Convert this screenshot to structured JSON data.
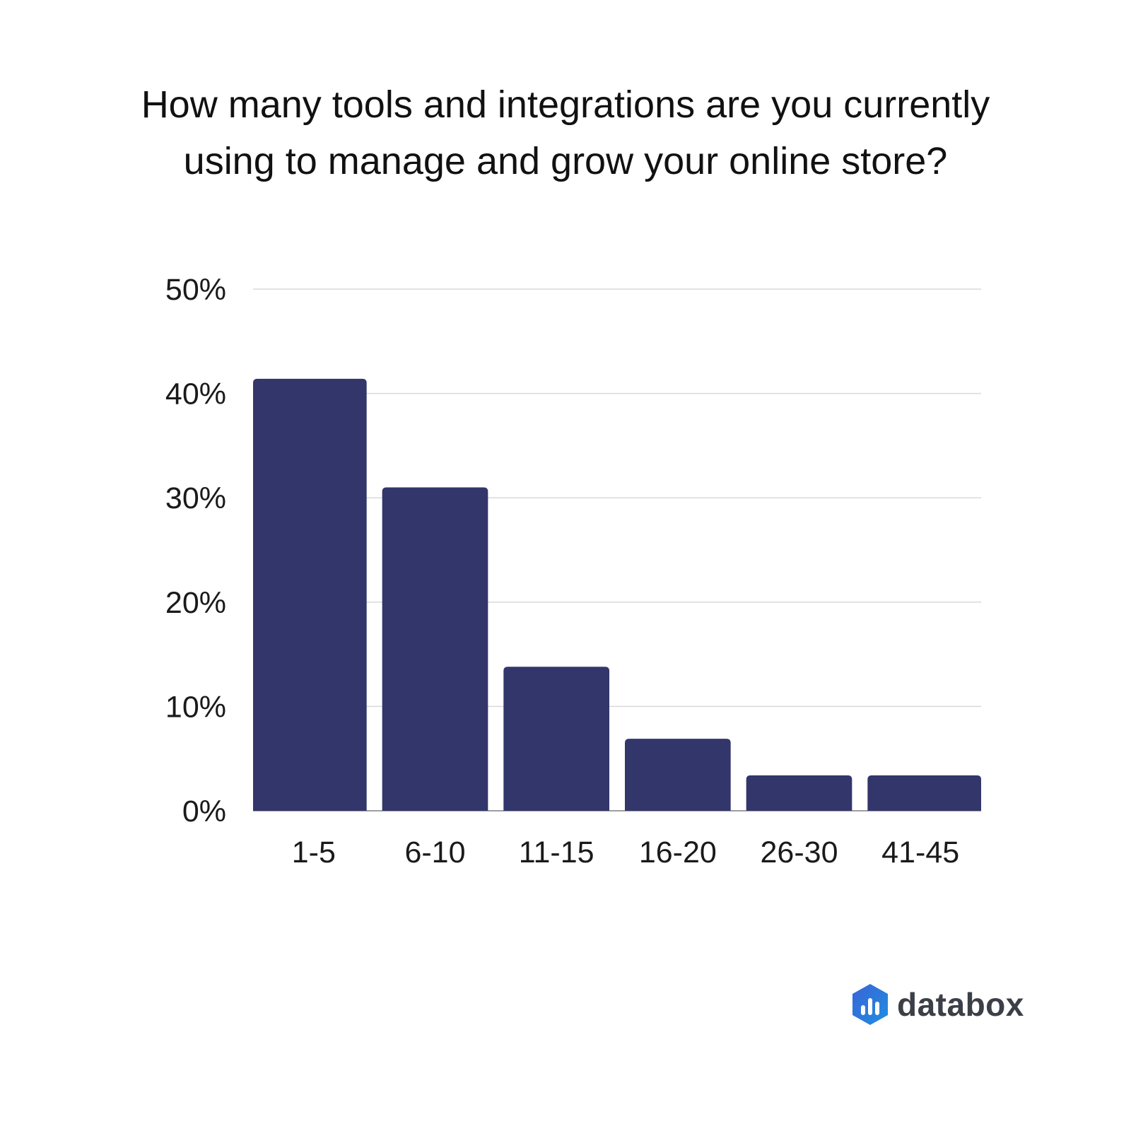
{
  "title_line1": "How many tools and integrations are you currently",
  "title_line2": "using to manage and grow your online store?",
  "brand": {
    "name": "databox",
    "logo_icon": "databox-logo-icon"
  },
  "colors": {
    "bar": "#32366b",
    "grid": "#d9d9d9",
    "axis": "#9e9e9e"
  },
  "chart_data": {
    "type": "bar",
    "title": "How many tools and integrations are you currently using to manage and grow your online store?",
    "xlabel": "",
    "ylabel": "",
    "categories": [
      "1-5",
      "6-10",
      "11-15",
      "16-20",
      "26-30",
      "41-45"
    ],
    "values": [
      41.4,
      31.0,
      13.8,
      6.9,
      3.4,
      3.4
    ],
    "ylim": [
      0,
      50
    ],
    "yticks": [
      0,
      10,
      20,
      30,
      40,
      50
    ],
    "ytick_labels": [
      "0%",
      "10%",
      "20%",
      "30%",
      "40%",
      "50%"
    ],
    "grid": true,
    "legend": "none"
  }
}
